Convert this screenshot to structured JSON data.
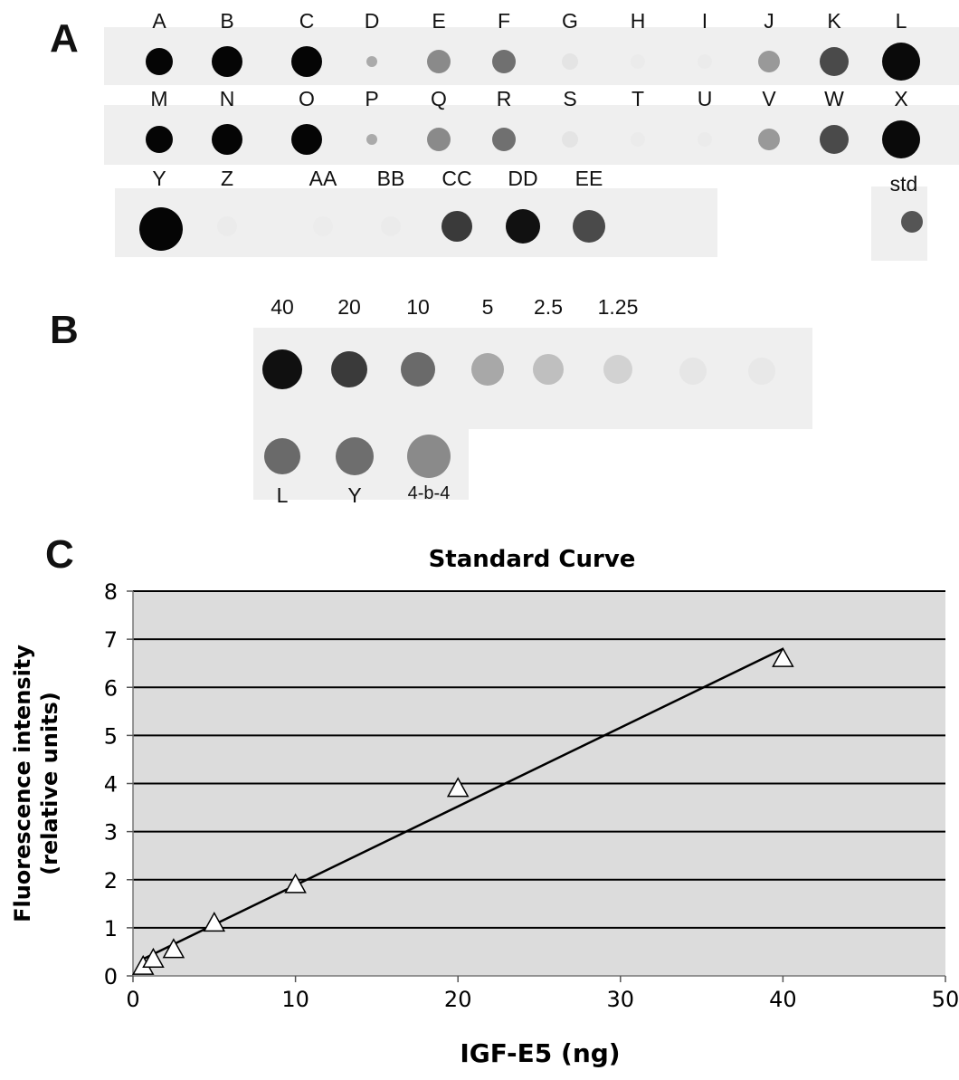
{
  "panels": {
    "a": "A",
    "b": "B",
    "c": "C"
  },
  "blot_a": {
    "row1": [
      "A",
      "B",
      "C",
      "D",
      "E",
      "F",
      "G",
      "H",
      "I",
      "J",
      "K",
      "L"
    ],
    "row2": [
      "M",
      "N",
      "O",
      "P",
      "Q",
      "R",
      "S",
      "T",
      "U",
      "V",
      "W",
      "X"
    ],
    "row3": [
      "Y",
      "Z",
      "AA",
      "BB",
      "CC",
      "DD",
      "EE"
    ],
    "std_label": "std"
  },
  "blot_b": {
    "dilutions": [
      "40",
      "20",
      "10",
      "5",
      "2.5",
      "1.25"
    ],
    "samples": [
      "L",
      "Y",
      "4-b-4"
    ]
  },
  "chart_data": {
    "type": "scatter",
    "title": "Standard Curve",
    "xlabel": "IGF-E5 (ng)",
    "ylabel": "Fluorescence intensity (relative units)",
    "xlim": [
      0,
      50
    ],
    "ylim": [
      0,
      8
    ],
    "xticks": [
      0,
      10,
      20,
      30,
      40,
      50
    ],
    "yticks": [
      0,
      1,
      2,
      3,
      4,
      5,
      6,
      7,
      8
    ],
    "grid": "horizontal",
    "series": [
      {
        "marker": "triangle",
        "x": [
          0.625,
          1.25,
          2.5,
          5,
          10,
          20,
          40
        ],
        "y": [
          0.2,
          0.35,
          0.55,
          1.1,
          1.9,
          3.9,
          6.6
        ]
      }
    ],
    "trendline": {
      "x": [
        0.625,
        40
      ],
      "y": [
        0.35,
        6.8
      ]
    }
  }
}
